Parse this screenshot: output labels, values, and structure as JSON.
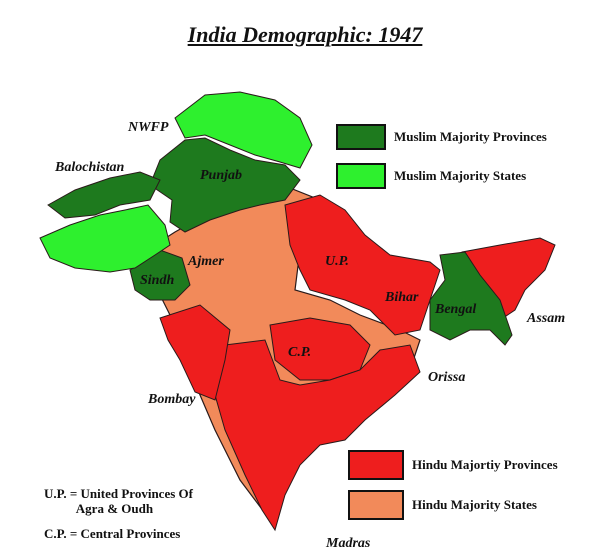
{
  "title": "India Demographic: 1947",
  "colors": {
    "muslim_provinces": "#1e7a1e",
    "muslim_states": "#2ef02e",
    "hindu_provinces": "#ee1e1e",
    "hindu_states": "#f28a5a",
    "border": "#2a1a1a"
  },
  "legend": {
    "muslim_provinces": "Muslim Majority Provinces",
    "muslim_states": "Muslim Majority States",
    "hindu_provinces": "Hindu Majortiy Provinces",
    "hindu_states": "Hindu Majority States"
  },
  "regions": {
    "nwfp": "NWFP",
    "balochistan": "Balochistan",
    "punjab": "Punjab",
    "sindh": "Sindh",
    "ajmer": "Ajmer",
    "up": "U.P.",
    "bihar": "Bihar",
    "bengal": "Bengal",
    "assam": "Assam",
    "cp": "C.P.",
    "orissa": "Orissa",
    "bombay": "Bombay",
    "madras": "Madras"
  },
  "notes": {
    "up_line1": "U.P. = United Provinces Of",
    "up_line2": "          Agra & Oudh",
    "cp": "C.P. = Central Provinces"
  }
}
